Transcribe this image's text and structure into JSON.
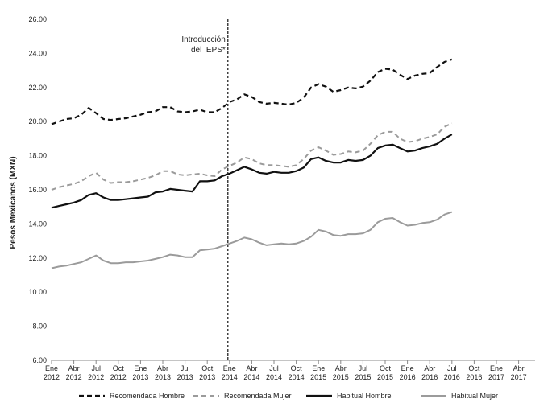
{
  "chart_data": {
    "type": "line",
    "ylabel": "Pesos Mexicanos (MXN)",
    "ylim": [
      6.0,
      26.0
    ],
    "yticks": [
      "6.00",
      "8.00",
      "10.00",
      "12.00",
      "14.00",
      "16.00",
      "18.00",
      "20.00",
      "22.00",
      "24.00",
      "26.00"
    ],
    "x_tick_labels": [
      {
        "month": "Ene",
        "year": "2012"
      },
      {
        "month": "Abr",
        "year": "2012"
      },
      {
        "month": "Jul",
        "year": "2012"
      },
      {
        "month": "Oct",
        "year": "2012"
      },
      {
        "month": "Ene",
        "year": "2013"
      },
      {
        "month": "Abr",
        "year": "2013"
      },
      {
        "month": "Jul",
        "year": "2013"
      },
      {
        "month": "Oct",
        "year": "2013"
      },
      {
        "month": "Ene",
        "year": "2014"
      },
      {
        "month": "Abr",
        "year": "2014"
      },
      {
        "month": "Jul",
        "year": "2014"
      },
      {
        "month": "Oct",
        "year": "2014"
      },
      {
        "month": "Ene",
        "year": "2015"
      },
      {
        "month": "Abr",
        "year": "2015"
      },
      {
        "month": "Jul",
        "year": "2015"
      },
      {
        "month": "Oct",
        "year": "2015"
      },
      {
        "month": "Ene",
        "year": "2016"
      },
      {
        "month": "Abr",
        "year": "2016"
      },
      {
        "month": "Jul",
        "year": "2016"
      },
      {
        "month": "Oct",
        "year": "2016"
      },
      {
        "month": "Ene",
        "year": "2017"
      },
      {
        "month": "Abr",
        "year": "2017"
      }
    ],
    "annotation": {
      "line1": "Introducción",
      "line2": "del IEPS*",
      "at_label_index": 8
    },
    "grid": false,
    "legend_position": "bottom",
    "series": [
      {
        "name": "Recomendada Hombre",
        "color": "#111111",
        "dash": "6,4",
        "width": 2.2,
        "values": [
          19.85,
          20.0,
          20.15,
          20.2,
          20.4,
          20.8,
          20.5,
          20.15,
          20.1,
          20.15,
          20.2,
          20.3,
          20.4,
          20.55,
          20.6,
          20.85,
          20.85,
          20.6,
          20.55,
          20.6,
          20.7,
          20.55,
          20.55,
          20.8,
          21.15,
          21.3,
          21.6,
          21.45,
          21.15,
          21.05,
          21.1,
          21.05,
          21.0,
          21.1,
          21.4,
          22.0,
          22.2,
          22.05,
          21.75,
          21.85,
          22.0,
          21.95,
          22.05,
          22.4,
          22.9,
          23.1,
          23.05,
          22.75,
          22.5,
          22.7,
          22.8,
          22.85,
          23.2,
          23.5,
          23.65
        ]
      },
      {
        "name": "Recomendada Mujer",
        "color": "#9b9b9b",
        "dash": "6,4",
        "width": 2.0,
        "values": [
          16.0,
          16.15,
          16.25,
          16.35,
          16.5,
          16.8,
          17.0,
          16.6,
          16.4,
          16.45,
          16.45,
          16.5,
          16.6,
          16.7,
          16.85,
          17.1,
          17.1,
          16.9,
          16.85,
          16.9,
          16.95,
          16.85,
          16.8,
          17.2,
          17.4,
          17.6,
          17.9,
          17.8,
          17.55,
          17.45,
          17.45,
          17.4,
          17.35,
          17.45,
          17.8,
          18.3,
          18.5,
          18.3,
          18.05,
          18.1,
          18.25,
          18.2,
          18.3,
          18.7,
          19.2,
          19.4,
          19.4,
          19.0,
          18.8,
          18.85,
          19.0,
          19.1,
          19.25,
          19.7,
          19.9
        ]
      },
      {
        "name": "Habitual Hombre",
        "color": "#111111",
        "dash": "",
        "width": 2.2,
        "values": [
          14.95,
          15.05,
          15.15,
          15.25,
          15.4,
          15.7,
          15.8,
          15.55,
          15.4,
          15.4,
          15.45,
          15.5,
          15.55,
          15.6,
          15.85,
          15.9,
          16.05,
          16.0,
          15.95,
          15.9,
          16.5,
          16.5,
          16.55,
          16.8,
          16.95,
          17.15,
          17.35,
          17.2,
          17.0,
          16.95,
          17.05,
          17.0,
          17.0,
          17.1,
          17.3,
          17.8,
          17.9,
          17.7,
          17.6,
          17.6,
          17.75,
          17.7,
          17.75,
          18.0,
          18.45,
          18.6,
          18.65,
          18.45,
          18.25,
          18.3,
          18.45,
          18.55,
          18.7,
          19.0,
          19.25
        ]
      },
      {
        "name": "Habitual Mujer",
        "color": "#9b9b9b",
        "dash": "",
        "width": 2.0,
        "values": [
          11.4,
          11.5,
          11.55,
          11.65,
          11.75,
          11.95,
          12.15,
          11.85,
          11.7,
          11.7,
          11.75,
          11.75,
          11.8,
          11.85,
          11.95,
          12.05,
          12.2,
          12.15,
          12.05,
          12.05,
          12.45,
          12.5,
          12.55,
          12.7,
          12.85,
          13.0,
          13.2,
          13.1,
          12.9,
          12.75,
          12.8,
          12.85,
          12.8,
          12.85,
          13.0,
          13.25,
          13.65,
          13.55,
          13.35,
          13.3,
          13.4,
          13.4,
          13.45,
          13.65,
          14.1,
          14.3,
          14.35,
          14.1,
          13.9,
          13.95,
          14.05,
          14.1,
          14.25,
          14.55,
          14.7
        ]
      }
    ]
  }
}
